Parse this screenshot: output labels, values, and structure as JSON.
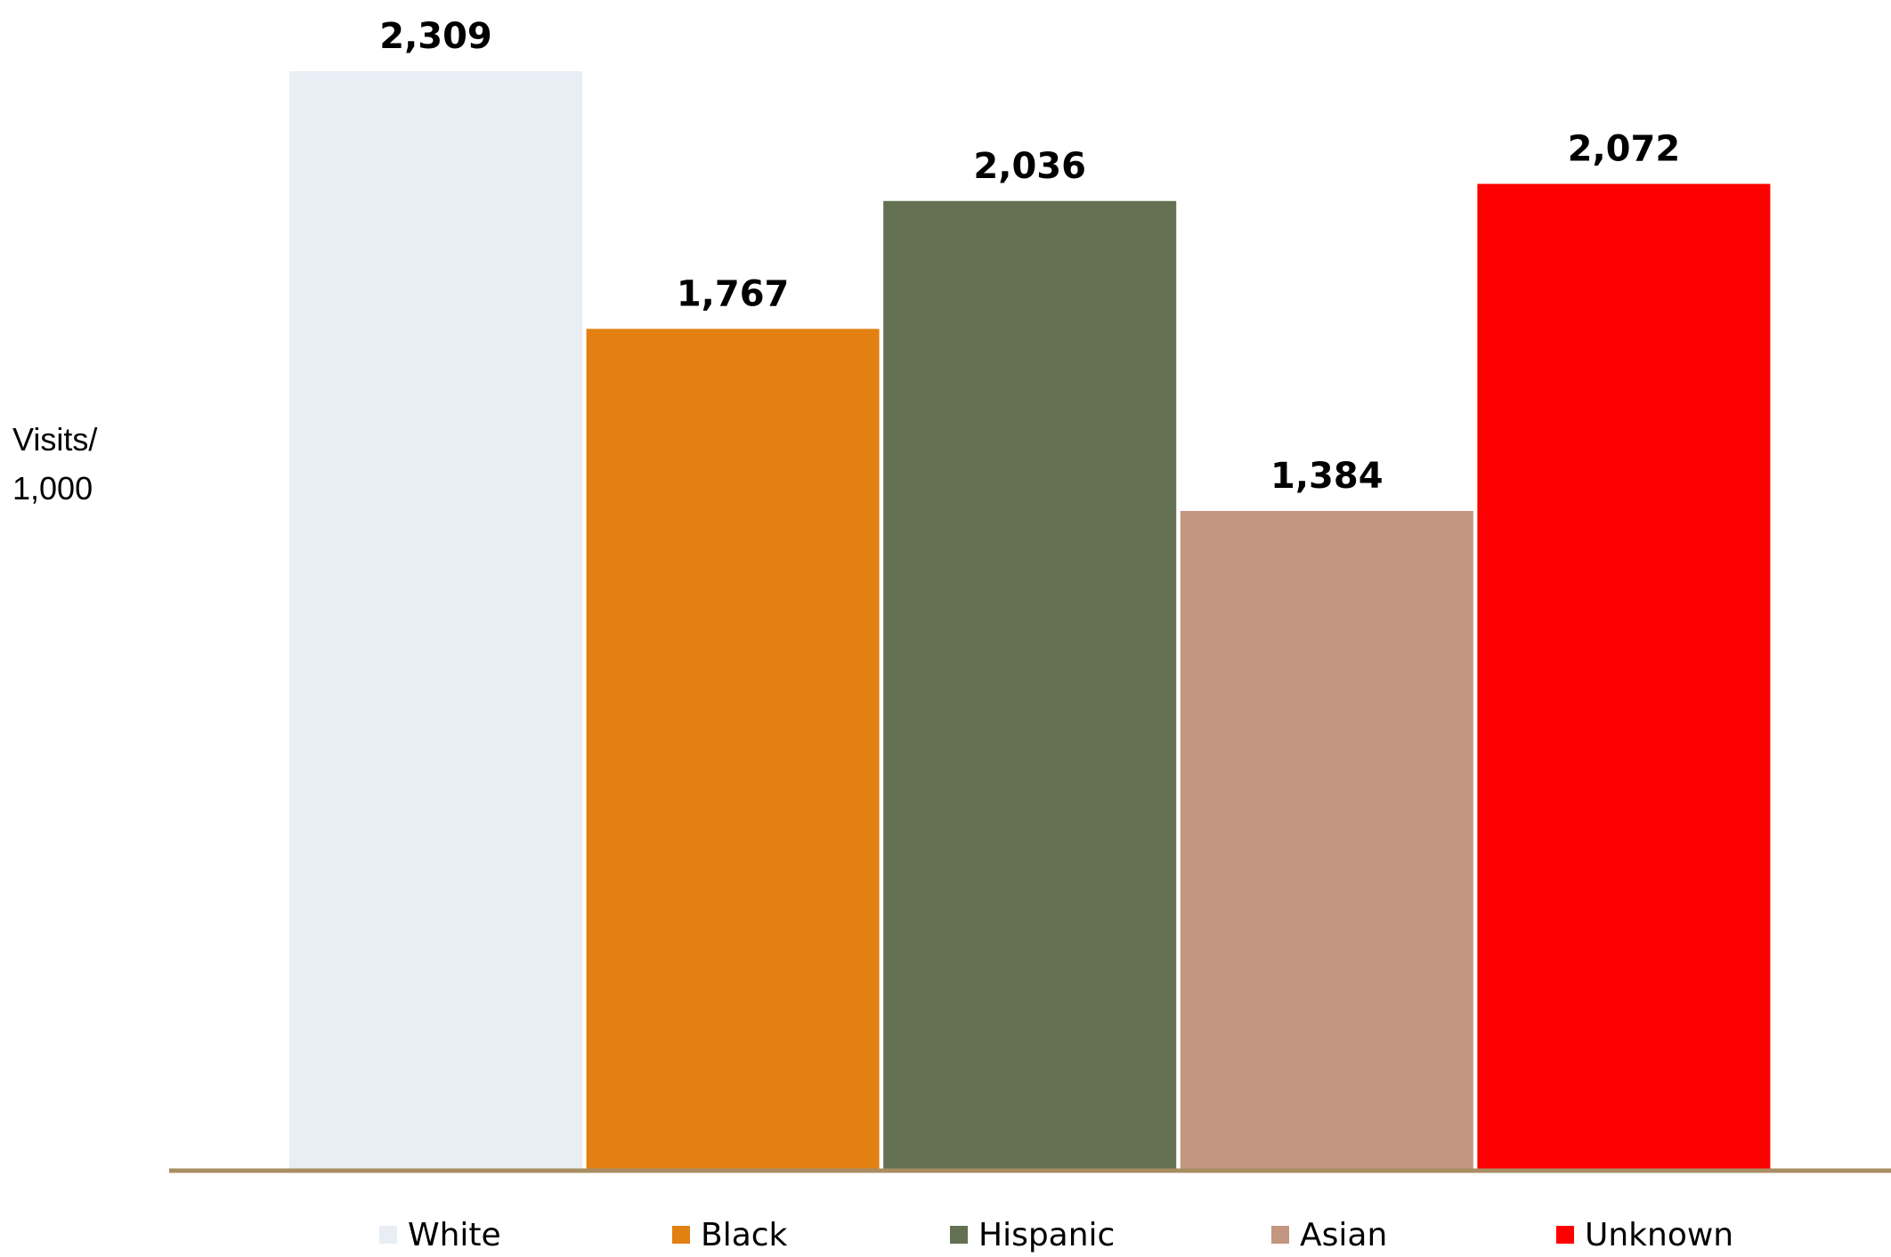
{
  "chart_data": {
    "type": "bar",
    "ylabel_line1": "Visits/",
    "ylabel_line2": "1,000",
    "categories": [
      "White",
      "Black",
      "Hispanic",
      "Asian",
      "Unknown"
    ],
    "values": [
      2309,
      1767,
      2036,
      1384,
      2072
    ],
    "value_labels": [
      "2,309",
      "1,767",
      "2,036",
      "1,384",
      "2,072"
    ],
    "colors": [
      "#E9EEF5",
      "#E28012",
      "#637052",
      "#C29681",
      "#FF0000"
    ],
    "axis_color": "#A88E62",
    "ylim": [
      0,
      2309
    ],
    "grid": false,
    "legend_position": "bottom"
  }
}
